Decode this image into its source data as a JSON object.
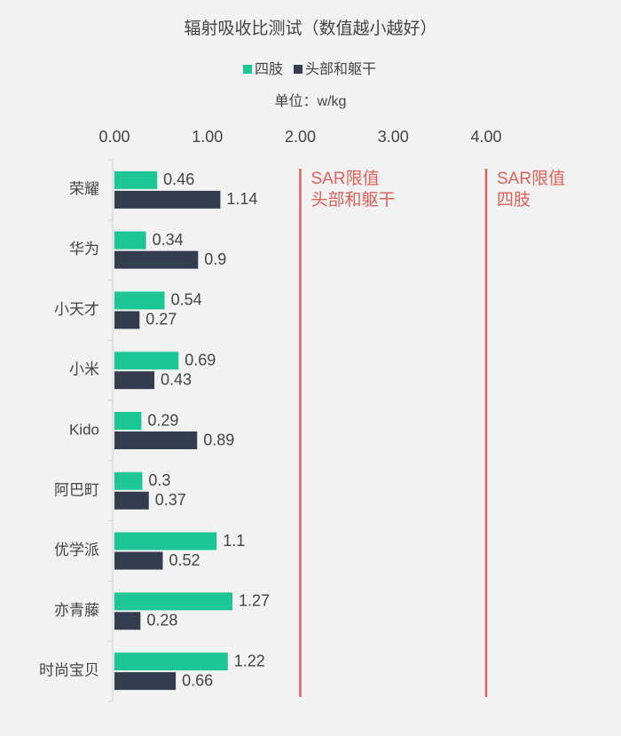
{
  "chart_data": {
    "type": "bar",
    "orientation": "horizontal",
    "title": "辐射吸收比测试（数值越小越好）",
    "subtitle": "单位：w/kg",
    "categories": [
      "荣耀",
      "华为",
      "小天才",
      "小米",
      "Kido",
      "阿巴町",
      "优学派",
      "亦青藤",
      "时尚宝贝"
    ],
    "series": [
      {
        "name": "四肢",
        "color": "#1dc795",
        "values": [
          0.46,
          0.34,
          0.54,
          0.69,
          0.29,
          0.3,
          1.1,
          1.27,
          1.22
        ]
      },
      {
        "name": "头部和躯干",
        "color": "#333d4f",
        "values": [
          1.14,
          0.9,
          0.27,
          0.43,
          0.89,
          0.37,
          0.52,
          0.28,
          0.66
        ]
      }
    ],
    "xlim": [
      0,
      4
    ],
    "xticks": [
      {
        "value": 0,
        "label": "0.00"
      },
      {
        "value": 1,
        "label": "1.00"
      },
      {
        "value": 2,
        "label": "2.00"
      },
      {
        "value": 3,
        "label": "3.00"
      },
      {
        "value": 4,
        "label": "4.00"
      }
    ],
    "reference_lines": [
      {
        "value": 2,
        "label": [
          "SAR限值",
          "头部和躯干"
        ],
        "color": "#e0605a"
      },
      {
        "value": 4,
        "label": [
          "SAR限值",
          "四肢"
        ],
        "color": "#e0605a"
      }
    ]
  }
}
